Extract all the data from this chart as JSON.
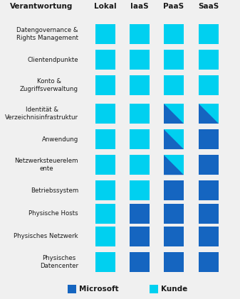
{
  "title_col": "Verantwortung",
  "columns": [
    "Lokal",
    "IaaS",
    "PaaS",
    "SaaS"
  ],
  "rows": [
    "Datengovernance &\nRights Management",
    "Clientendpunkte",
    "Konto &\nZugriffsverwaltung",
    "Identität &\nVerzeichnisinfrastruktur",
    "Anwendung",
    "Netzwerksteuerelem\nente",
    "Betriebssystem",
    "Physische Hosts",
    "Physisches Netzwerk",
    "Physisches\nDatencenter"
  ],
  "color_microsoft": "#1565C0",
  "color_kunde": "#00D0F0",
  "color_bg": "#F0F0F0",
  "cell_types": [
    [
      "K",
      "K",
      "K",
      "K"
    ],
    [
      "K",
      "K",
      "K",
      "K"
    ],
    [
      "K",
      "K",
      "K",
      "K"
    ],
    [
      "K",
      "K",
      "S",
      "S"
    ],
    [
      "K",
      "K",
      "S",
      "M"
    ],
    [
      "K",
      "K",
      "S",
      "M"
    ],
    [
      "K",
      "K",
      "M",
      "M"
    ],
    [
      "K",
      "M",
      "M",
      "M"
    ],
    [
      "K",
      "M",
      "M",
      "M"
    ],
    [
      "K",
      "M",
      "M",
      "M"
    ]
  ],
  "legend_microsoft": "Microsoft",
  "legend_kunde": "Kunde"
}
